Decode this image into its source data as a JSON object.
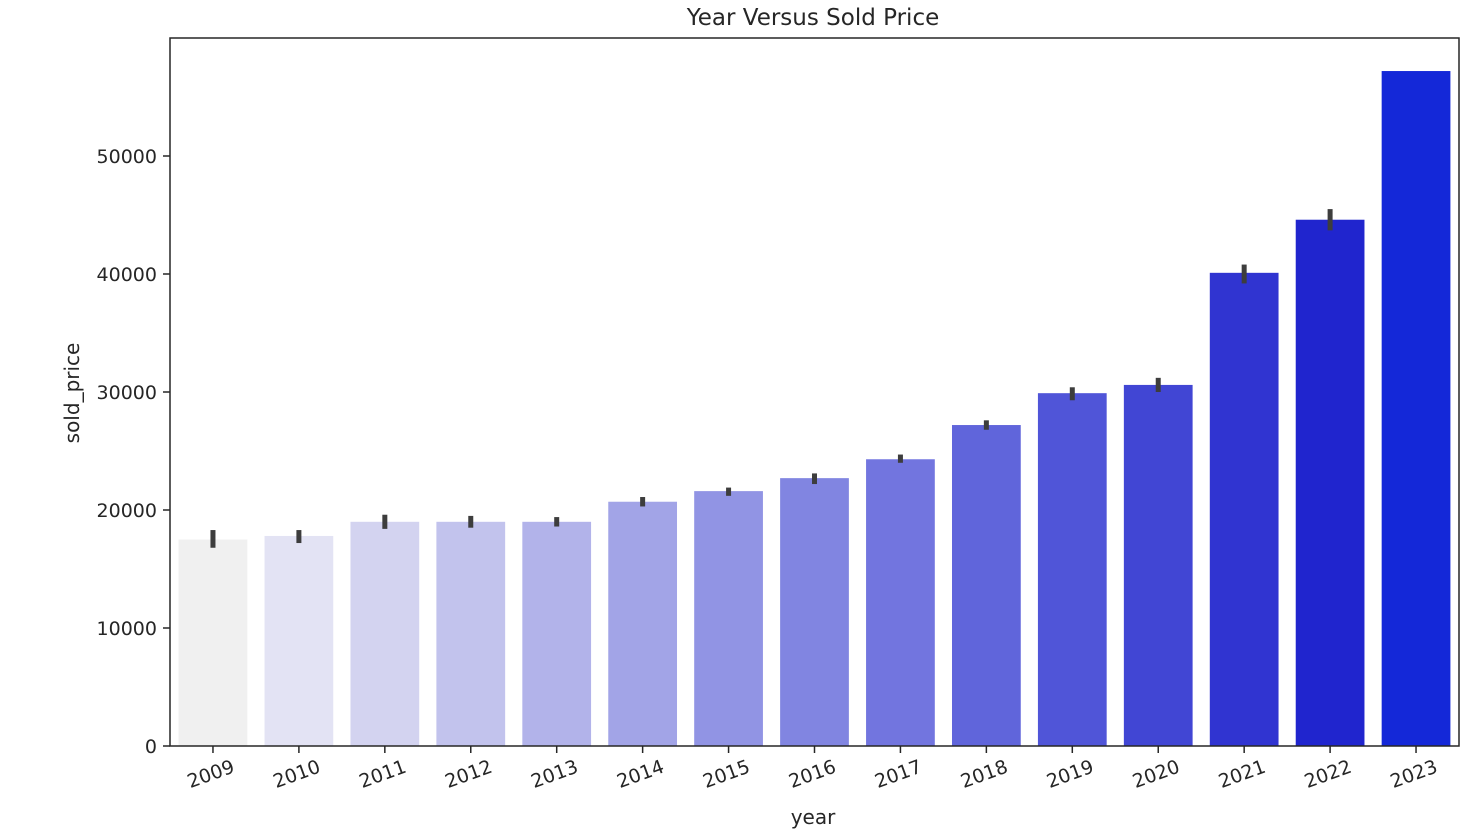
{
  "chart_data": {
    "type": "bar",
    "title": "Year Versus Sold Price",
    "xlabel": "year",
    "ylabel": "sold_price",
    "categories": [
      "2009",
      "2010",
      "2011",
      "2012",
      "2013",
      "2014",
      "2015",
      "2016",
      "2017",
      "2018",
      "2019",
      "2020",
      "2021",
      "2022",
      "2023"
    ],
    "values": [
      17500,
      17800,
      19000,
      19000,
      19000,
      20700,
      21600,
      22700,
      24300,
      27200,
      29900,
      30600,
      40100,
      44600,
      57200
    ],
    "error_low": [
      16800,
      17200,
      18400,
      18500,
      18600,
      20300,
      21200,
      22200,
      24000,
      26800,
      29300,
      30000,
      39200,
      43700,
      57200
    ],
    "error_high": [
      18300,
      18300,
      19600,
      19500,
      19400,
      21100,
      21900,
      23100,
      24700,
      27600,
      30400,
      31200,
      40800,
      45500,
      57200
    ],
    "colors": [
      "#f0f0f0",
      "#e3e3f4",
      "#d3d3f0",
      "#c2c3ed",
      "#b2b3ea",
      "#a2a4e7",
      "#9194e4",
      "#8185e1",
      "#7275df",
      "#6065db",
      "#5055d8",
      "#4146d4",
      "#3034d1",
      "#2025ce",
      "#1428d8"
    ],
    "yticks": [
      0,
      10000,
      20000,
      30000,
      40000,
      50000
    ],
    "ylim": [
      0,
      60000
    ],
    "grid": false,
    "legend": "none"
  }
}
